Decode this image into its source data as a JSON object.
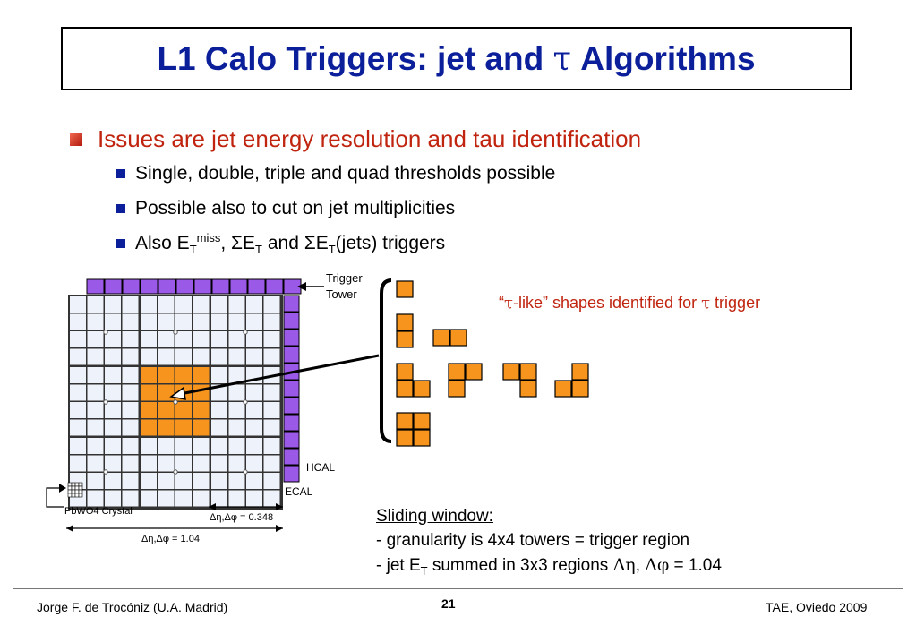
{
  "slide": {
    "title_pre": "L1 Calo Triggers: jet and ",
    "title_tau": "τ",
    "title_post": " Algorithms",
    "main_bullet": "Issues are jet energy resolution and tau identification",
    "sub_bullets": {
      "thresholds": "Single, double, triple and quad thresholds possible",
      "multiplicities": "Possible also to cut on jet multiplicities",
      "also_prefix": "Also E",
      "T": "T",
      "miss": "miss",
      "sep1": ", ΣE",
      "and": " and ΣE",
      "jets": "(jets) triggers"
    }
  },
  "diagram": {
    "trigger_tower_line1": "Trigger",
    "trigger_tower_line2": "Tower",
    "hcal": "HCAL",
    "ecal": "ECAL",
    "crystal": "PbWO4 Crystal",
    "small_dim": "Δη,Δφ = 0.348",
    "large_dim": "Δη,Δφ = 1.04"
  },
  "tau_caption": {
    "open_quote": "“",
    "tau1": "τ",
    "middle": "-like” shapes identified for ",
    "tau2": "τ",
    "end": " trigger"
  },
  "sliding_window": {
    "title": "Sliding window:",
    "line1": "- granularity is 4x4 towers = trigger region",
    "line2_prefix": "- jet E",
    "line2_T": "T",
    "line2_mid": " summed in 3x3 regions ",
    "line2_deta": "Δη",
    "line2_comma": ", ",
    "line2_dphi": "Δφ",
    "line2_end": " = 1.04"
  },
  "footer": {
    "left": "Jorge F. de Trocóniz (U.A. Madrid)",
    "page": "21",
    "right": "TAE, Oviedo 2009"
  },
  "colors": {
    "title_blue": "#0b1f9b",
    "accent_red": "#c0240f",
    "tower_orange": "#f7941d",
    "hcal_purple": "#9b59e8",
    "grid_fill": "#eef2fa"
  }
}
